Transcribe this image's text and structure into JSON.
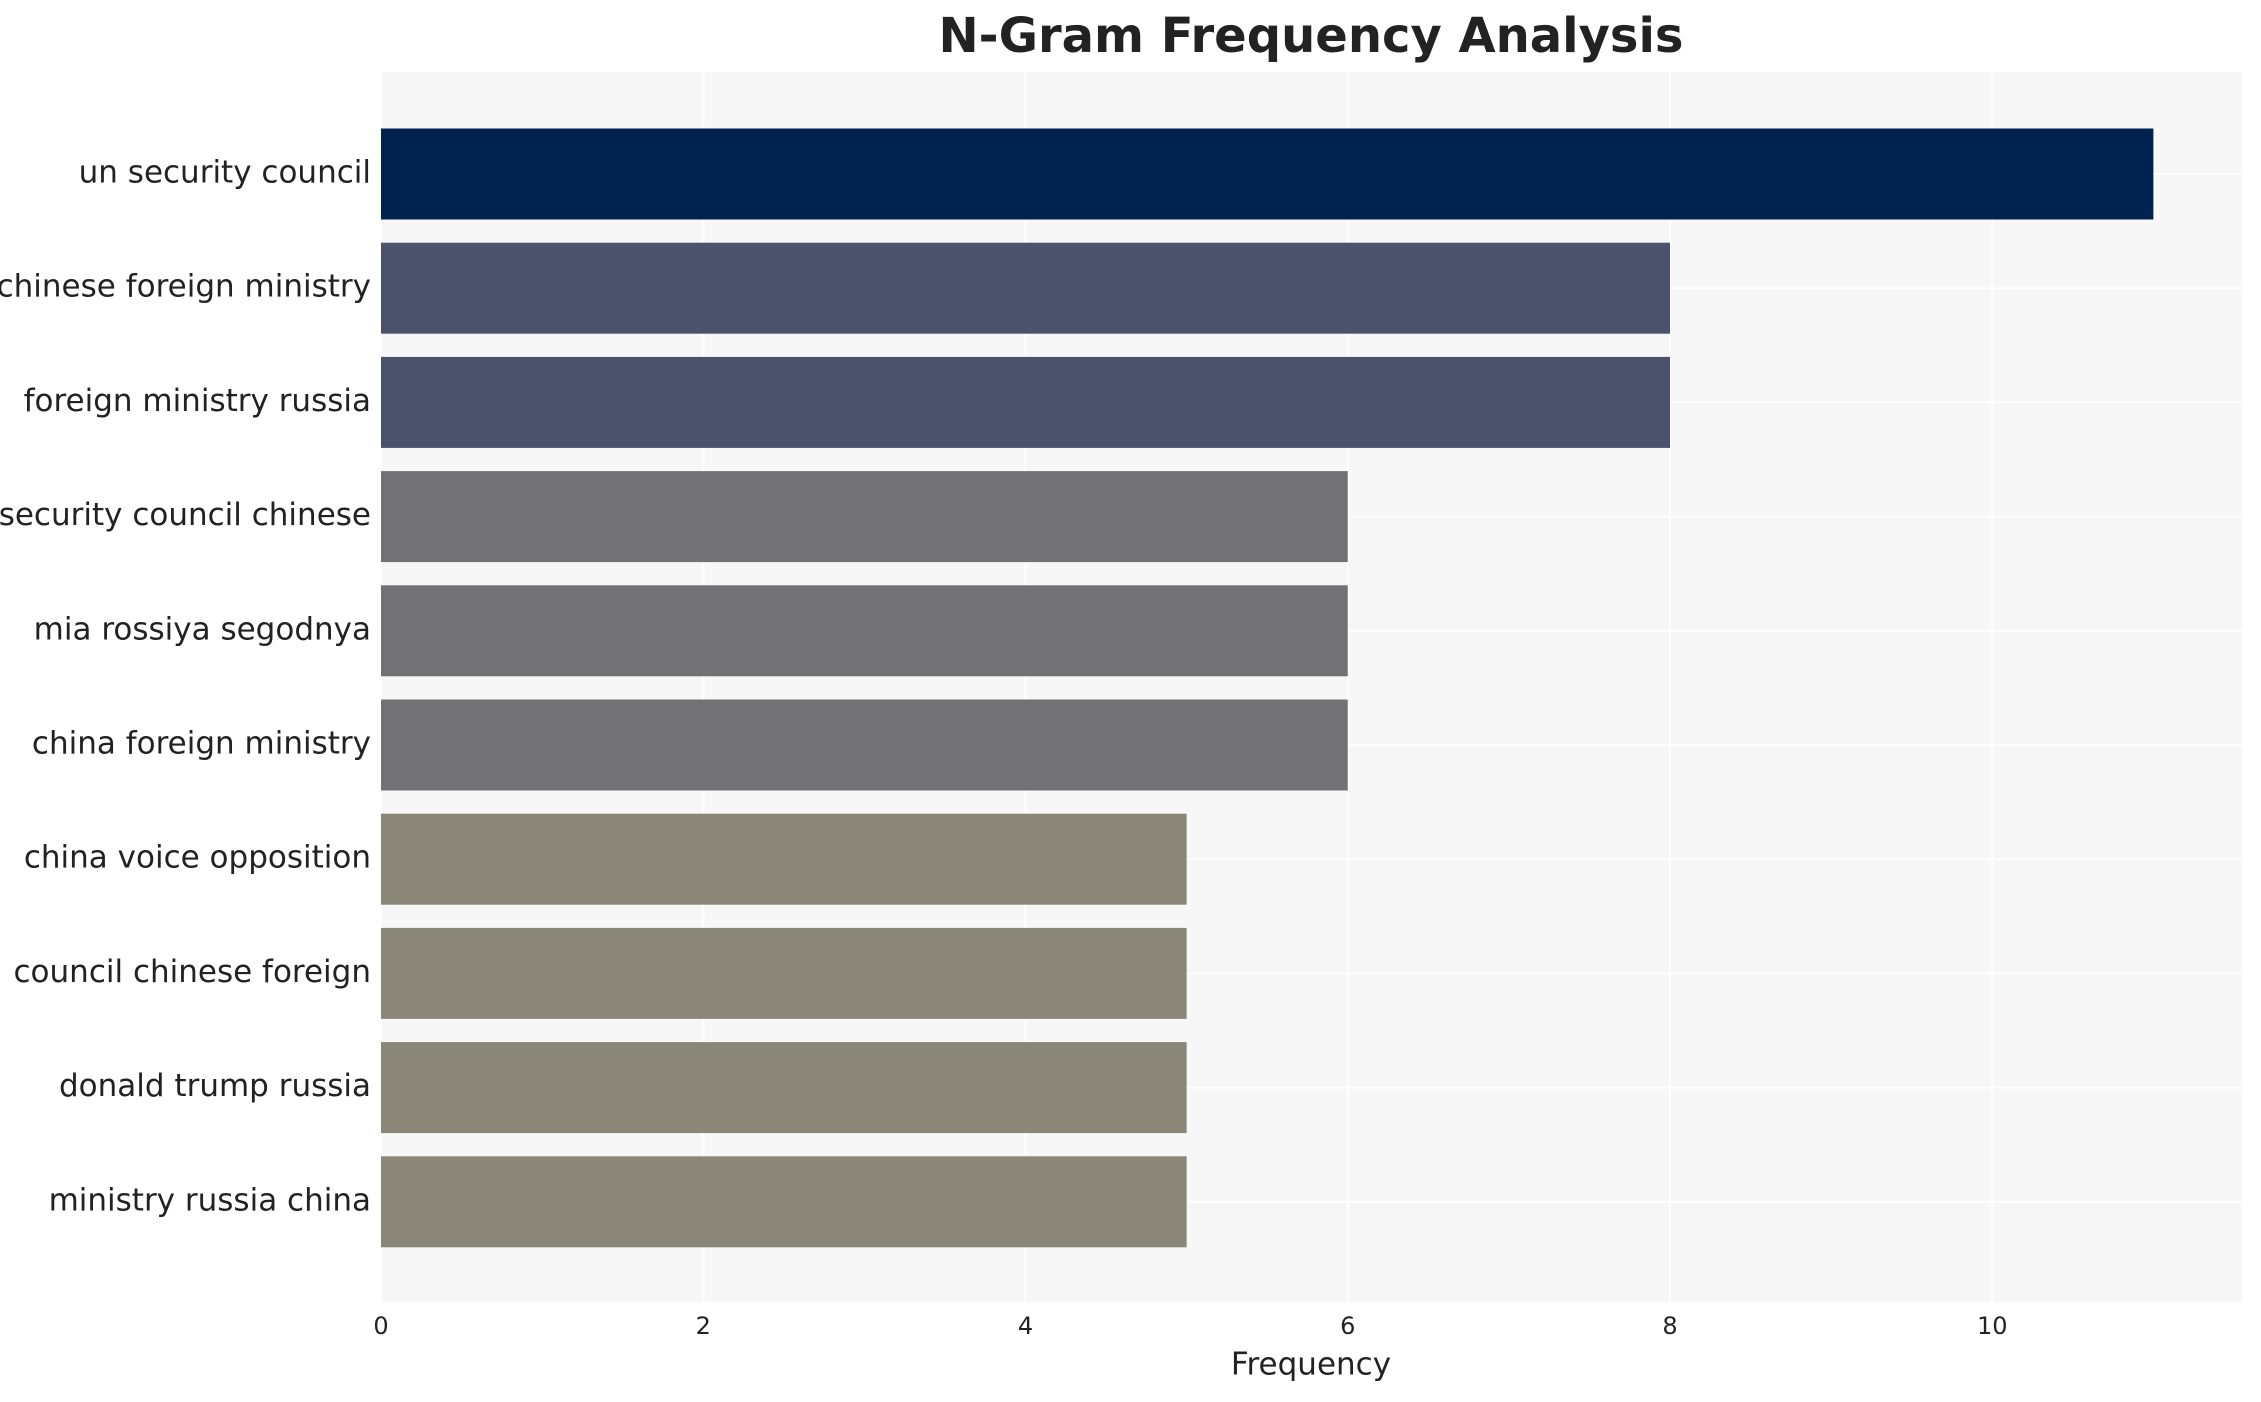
{
  "chart_data": {
    "type": "barh",
    "title": "N-Gram Frequency Analysis",
    "x_label": "Frequency",
    "categories": [
      "un security council",
      "chinese foreign ministry",
      "foreign ministry russia",
      "security council chinese",
      "mia rossiya segodnya",
      "china foreign ministry",
      "china voice opposition",
      "council chinese foreign",
      "donald trump russia",
      "ministry russia china"
    ],
    "values": [
      11,
      8,
      8,
      6,
      6,
      6,
      5,
      5,
      5,
      5
    ],
    "colors": [
      "#00224e",
      "#4a536b",
      "#4a536b",
      "#727274",
      "#727274",
      "#727274",
      "#8a8779",
      "#8a8779",
      "#8a8779",
      "#8a8779"
    ],
    "xlim": [
      0,
      11.55
    ],
    "xticks": [
      0,
      2,
      4,
      6,
      8,
      10
    ],
    "grid": true
  }
}
